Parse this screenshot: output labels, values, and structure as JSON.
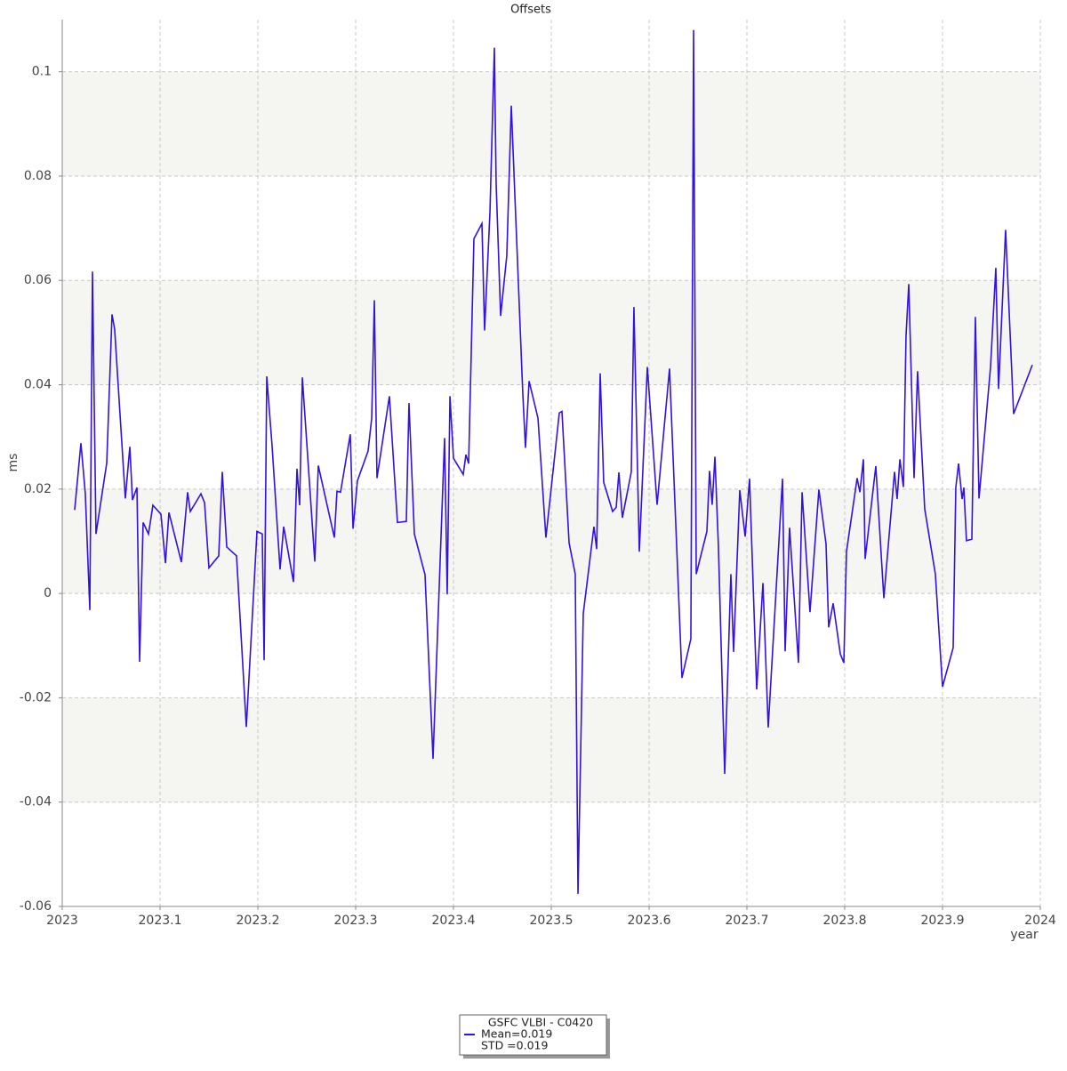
{
  "chart_data": {
    "type": "line",
    "title": "Offsets",
    "x_label": "year",
    "y_label": "ms",
    "xlim": [
      2023,
      2024
    ],
    "xticks": [
      2023,
      2023.1,
      2023.2,
      2023.3,
      2023.4,
      2023.5,
      2023.6,
      2023.7,
      2023.8,
      2023.9,
      2024
    ],
    "ylim": [
      -0.06,
      0.11
    ],
    "yticks": [
      -0.06,
      -0.04,
      -0.02,
      0,
      0.02,
      0.04,
      0.06,
      0.08,
      0.1
    ],
    "grid": true,
    "legend_position": "bottom",
    "legend_notes": [
      "Mean=0.019",
      "STD =0.019"
    ],
    "x": [
      2023.0127,
      2023.0191,
      2023.0236,
      2023.0282,
      2023.0309,
      2023.0345,
      2023.0455,
      2023.0509,
      2023.0536,
      2023.0645,
      2023.0691,
      2023.0718,
      2023.0764,
      2023.0791,
      2023.0827,
      2023.0882,
      2023.0927,
      2023.1009,
      2023.1055,
      2023.1091,
      2023.1218,
      2023.1282,
      2023.1309,
      2023.1418,
      2023.1455,
      2023.15,
      2023.16,
      2023.1636,
      2023.1682,
      2023.1782,
      2023.1882,
      2023.1991,
      2023.2045,
      2023.2064,
      2023.2091,
      2023.2145,
      2023.2227,
      2023.2264,
      2023.2364,
      2023.24,
      2023.2427,
      2023.2455,
      2023.2582,
      2023.2618,
      2023.2782,
      2023.2809,
      2023.2845,
      2023.2945,
      2023.2973,
      2023.3018,
      2023.3127,
      2023.3164,
      2023.3191,
      2023.3218,
      2023.3345,
      2023.3427,
      2023.3518,
      2023.3545,
      2023.36,
      2023.3709,
      2023.3791,
      2023.3909,
      2023.3936,
      2023.3964,
      2023.4,
      2023.41,
      2023.4127,
      2023.4155,
      2023.4209,
      2023.4291,
      2023.4318,
      2023.4373,
      2023.4418,
      2023.4436,
      2023.4482,
      2023.4545,
      2023.4591,
      2023.4709,
      2023.4736,
      2023.4773,
      2023.4864,
      2023.4945,
      2023.5082,
      2023.5109,
      2023.5182,
      2023.5245,
      2023.5273,
      2023.5327,
      2023.5436,
      2023.5464,
      2023.55,
      2023.5536,
      2023.5627,
      2023.5664,
      2023.5691,
      2023.5727,
      2023.5818,
      2023.5845,
      2023.59,
      2023.5982,
      2023.6082,
      2023.6209,
      2023.6336,
      2023.6427,
      2023.6455,
      2023.6482,
      2023.6591,
      2023.6618,
      2023.6645,
      2023.6673,
      2023.6709,
      2023.6773,
      2023.6836,
      2023.6864,
      2023.6927,
      2023.6982,
      2023.7027,
      2023.71,
      2023.7164,
      2023.7218,
      2023.7364,
      2023.7391,
      2023.7436,
      2023.7527,
      2023.7564,
      2023.7645,
      2023.7736,
      2023.7809,
      2023.7836,
      2023.7882,
      2023.7955,
      2023.7991,
      2023.8018,
      2023.8127,
      2023.8155,
      2023.8191,
      2023.8209,
      2023.8318,
      2023.84,
      2023.8509,
      2023.8536,
      2023.8564,
      2023.86,
      2023.8627,
      2023.8655,
      2023.8709,
      2023.8745,
      2023.8818,
      2023.8927,
      2023.9,
      2023.9109,
      2023.9136,
      2023.9164,
      2023.92,
      2023.9218,
      2023.9245,
      2023.93,
      2023.9336,
      2023.9373,
      2023.9491,
      2023.9545,
      2023.9573,
      2023.9645,
      2023.9727,
      2023.9918
    ],
    "series": [
      {
        "name": "GSFC VLBI - C0420",
        "color": "#3311e0",
        "values": [
          0.016,
          0.0288,
          0.0191,
          -0.0032,
          0.0617,
          0.0114,
          0.025,
          0.0535,
          0.0506,
          0.0182,
          0.0281,
          0.0179,
          0.0203,
          -0.0131,
          0.0136,
          0.0114,
          0.0169,
          0.0152,
          0.0058,
          0.0155,
          0.006,
          0.0194,
          0.0157,
          0.0191,
          0.0174,
          0.0049,
          0.0072,
          0.0233,
          0.0089,
          0.0072,
          -0.0256,
          0.0119,
          0.0114,
          -0.0128,
          0.0416,
          0.0284,
          0.0046,
          0.0128,
          0.0022,
          0.0239,
          0.0169,
          0.0414,
          0.0061,
          0.0245,
          0.0107,
          0.0196,
          0.0194,
          0.0305,
          0.0124,
          0.0216,
          0.0273,
          0.0336,
          0.0562,
          0.0221,
          0.0378,
          0.0136,
          0.0138,
          0.0365,
          0.0114,
          0.0036,
          -0.0317,
          0.0298,
          -0.0002,
          0.0378,
          0.0259,
          0.0228,
          0.0266,
          0.0249,
          0.068,
          0.0709,
          0.0504,
          0.0731,
          0.1046,
          0.0787,
          0.0532,
          0.0647,
          0.0935,
          0.0382,
          0.0279,
          0.0407,
          0.0336,
          0.0107,
          0.0346,
          0.0349,
          0.0097,
          0.0037,
          -0.0576,
          -0.0039,
          0.0128,
          0.0085,
          0.0422,
          0.0213,
          0.0157,
          0.0165,
          0.0232,
          0.0145,
          0.0233,
          0.0549,
          0.008,
          0.0434,
          0.017,
          0.0431,
          -0.0162,
          -0.0087,
          0.108,
          0.0037,
          0.0119,
          0.0235,
          0.017,
          0.0262,
          0.0089,
          -0.0346,
          0.0037,
          -0.0112,
          0.0198,
          0.0109,
          0.022,
          -0.0184,
          0.002,
          -0.0257,
          0.022,
          -0.0111,
          0.0126,
          -0.0133,
          0.0194,
          -0.0036,
          0.0199,
          0.0095,
          -0.0065,
          -0.0019,
          -0.0116,
          -0.0133,
          0.008,
          0.0221,
          0.0194,
          0.0257,
          0.0066,
          0.0244,
          -0.0009,
          0.0233,
          0.0181,
          0.0257,
          0.0204,
          0.0494,
          0.0593,
          0.0221,
          0.0426,
          0.0162,
          0.0037,
          -0.0179,
          -0.0104,
          0.0203,
          0.0249,
          0.0181,
          0.0203,
          0.0101,
          0.0104,
          0.053,
          0.0182,
          0.0434,
          0.0624,
          0.0392,
          0.0697,
          0.0344,
          0.0438
        ]
      }
    ]
  }
}
